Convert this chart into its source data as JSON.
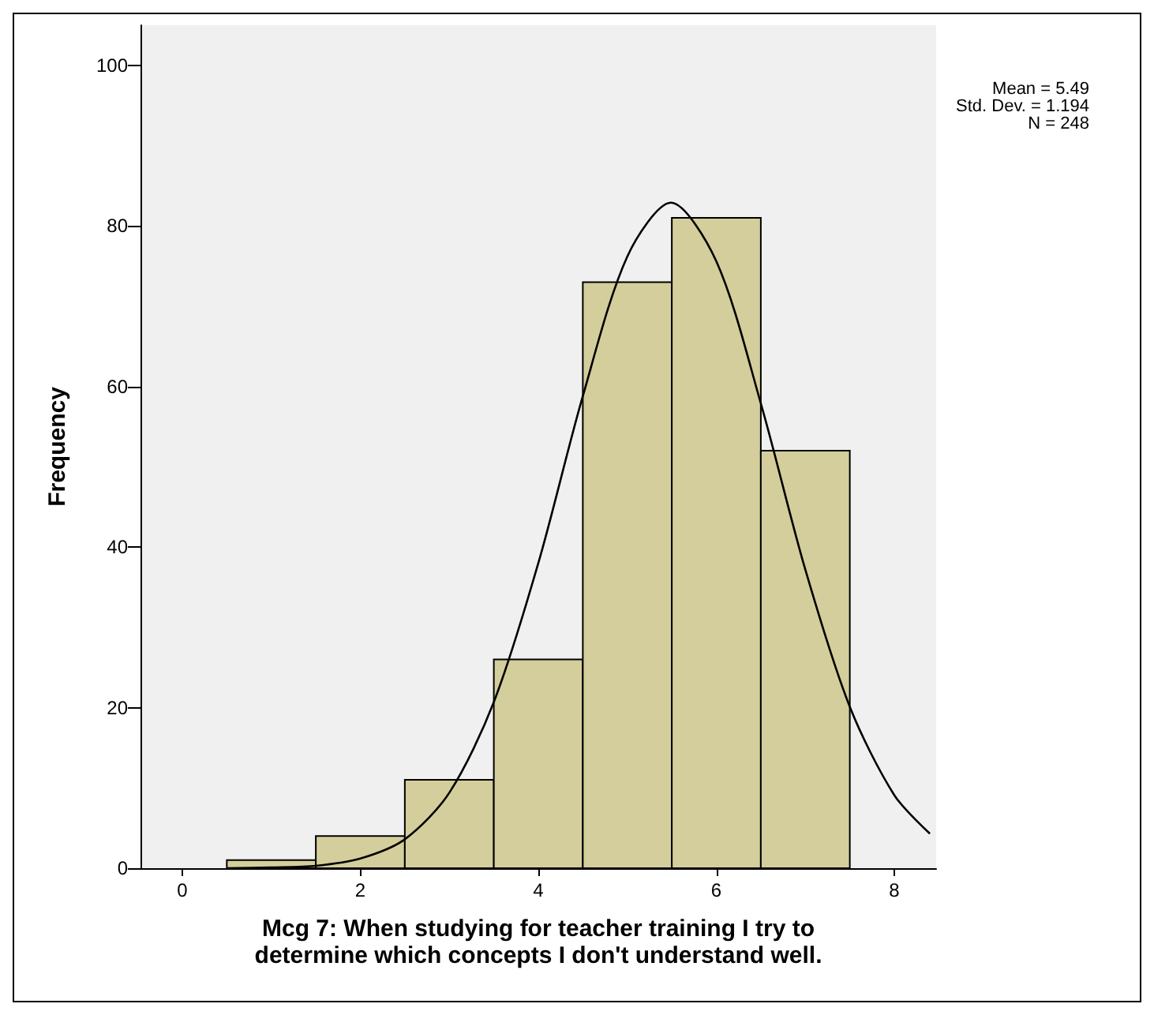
{
  "chart_data": {
    "type": "histogram",
    "xlabel": "Mcg 7: When studying for teacher training I try to\ndetermine which concepts I don't understand well.",
    "ylabel": "Frequency",
    "bins": [
      0.5,
      1.5,
      2.5,
      3.5,
      4.5,
      5.5,
      6.5,
      7.5
    ],
    "values": [
      1,
      4,
      11,
      26,
      73,
      81,
      52
    ],
    "color": "#d3ce9b",
    "series": [
      {
        "type": "line",
        "color": "#000000",
        "x": [
          0.5,
          1,
          1.5,
          2,
          2.5,
          3,
          3.5,
          4,
          4.5,
          5,
          5.49,
          6,
          6.5,
          7,
          7.5,
          8,
          8.4
        ],
        "values": [
          0,
          0.1,
          0.3,
          1.2,
          3.6,
          9.4,
          20.7,
          38,
          58.8,
          76.2,
          82.9,
          75.6,
          57.9,
          37.2,
          20.1,
          9.1,
          4.3
        ]
      }
    ],
    "marker": "none",
    "xlim": [
      -0.47,
      8.47
    ],
    "xticks": [
      0,
      2,
      4,
      6,
      8
    ],
    "ylim": [
      0,
      105
    ],
    "yticks": [
      0,
      20,
      40,
      60,
      80,
      100
    ],
    "grid": false,
    "annotations": [
      "Mean = 5.49",
      "Std. Dev. = 1.194",
      "N = 248"
    ]
  }
}
